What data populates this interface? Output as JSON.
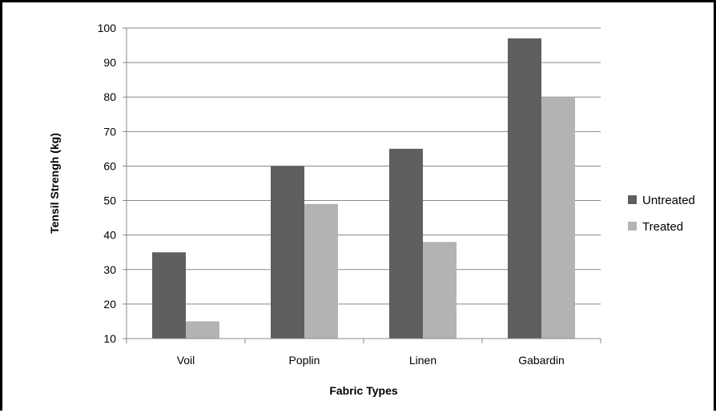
{
  "chart_data": {
    "type": "bar",
    "categories": [
      "Voil",
      "Poplin",
      "Linen",
      "Gabardin"
    ],
    "series": [
      {
        "name": "Untreated",
        "values": [
          35,
          60,
          65,
          97
        ],
        "color": "#5f5f5f"
      },
      {
        "name": "Treated",
        "values": [
          15,
          49,
          38,
          80
        ],
        "color": "#b3b3b3"
      }
    ],
    "xlabel": "Fabric Types",
    "ylabel": "Tensil Strengh (kg)",
    "ylim": [
      10,
      100
    ],
    "yticks": [
      10,
      20,
      30,
      40,
      50,
      60,
      70,
      80,
      90,
      100
    ],
    "grid": true,
    "gridColor": "#888888",
    "legend": "right"
  }
}
